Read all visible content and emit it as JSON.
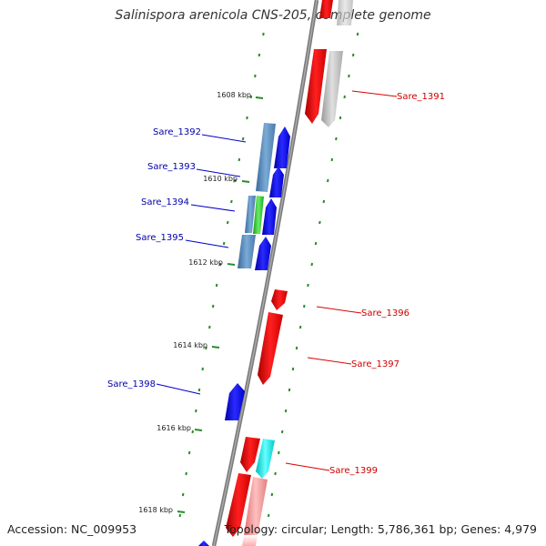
{
  "title": "Salinispora arenicola CNS-205, complete genome",
  "footer": {
    "accession": "Accession: NC_009953",
    "topology": "Topology: circular; Length: 5,786,361 bp; Genes: 4,979"
  },
  "colors": {
    "forward_gene": "#ee1111",
    "reverse_gene": "#1111dd",
    "backbone": "#777777",
    "tick": "#2a8a2a",
    "forward_label": "#cc0000",
    "reverse_label": "#0000aa"
  },
  "scale_ticks": [
    {
      "label": "1608 kbp"
    },
    {
      "label": "1610 kbp"
    },
    {
      "label": "1612 kbp"
    },
    {
      "label": "1614 kbp"
    },
    {
      "label": "1616 kbp"
    },
    {
      "label": "1618 kbp"
    }
  ],
  "genes": [
    {
      "name": "Sare_1391",
      "strand": "forward"
    },
    {
      "name": "Sare_1392",
      "strand": "reverse"
    },
    {
      "name": "Sare_1393",
      "strand": "reverse"
    },
    {
      "name": "Sare_1394",
      "strand": "reverse"
    },
    {
      "name": "Sare_1395",
      "strand": "reverse"
    },
    {
      "name": "Sare_1396",
      "strand": "forward"
    },
    {
      "name": "Sare_1397",
      "strand": "forward"
    },
    {
      "name": "Sare_1398",
      "strand": "reverse"
    },
    {
      "name": "Sare_1399",
      "strand": "forward"
    }
  ]
}
